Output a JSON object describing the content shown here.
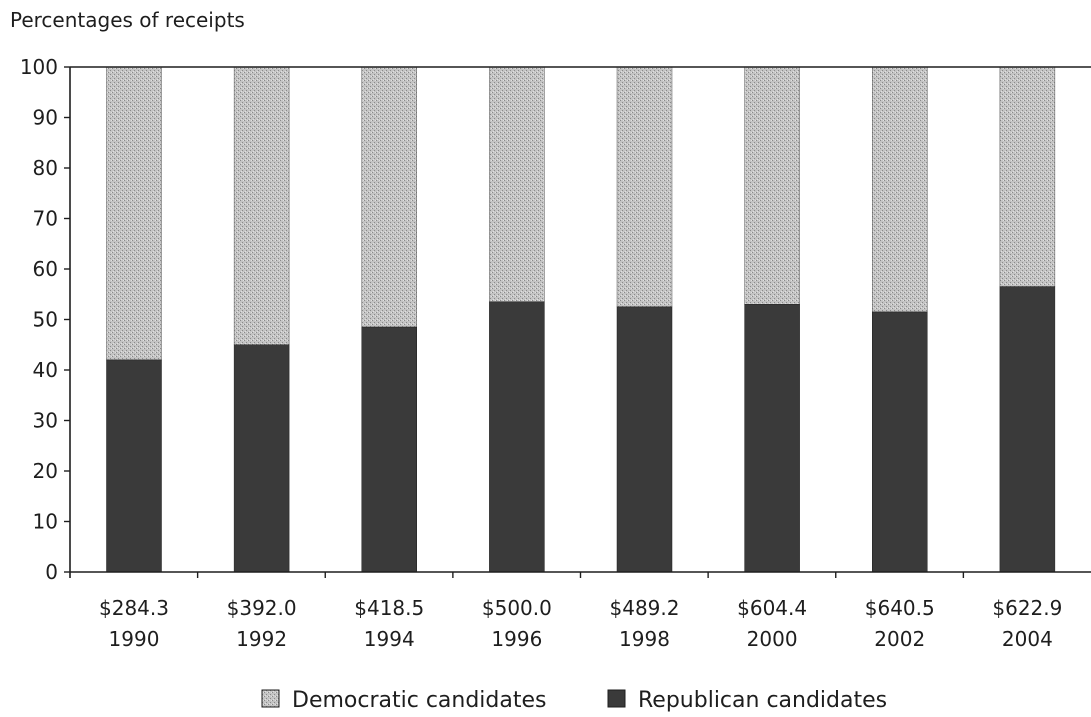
{
  "chart_data": {
    "type": "bar",
    "stacked": true,
    "title": "",
    "ylabel": "Percentages of receipts",
    "xlabel": "",
    "ylim": [
      0,
      100
    ],
    "yticks": [
      0,
      10,
      20,
      30,
      40,
      50,
      60,
      70,
      80,
      90,
      100
    ],
    "grid": false,
    "legend_position": "bottom",
    "categories": [
      {
        "amount": "$284.3",
        "year": "1990"
      },
      {
        "amount": "$392.0",
        "year": "1992"
      },
      {
        "amount": "$418.5",
        "year": "1994"
      },
      {
        "amount": "$500.0",
        "year": "1996"
      },
      {
        "amount": "$489.2",
        "year": "1998"
      },
      {
        "amount": "$604.4",
        "year": "2000"
      },
      {
        "amount": "$640.5",
        "year": "2002"
      },
      {
        "amount": "$622.9",
        "year": "2004"
      }
    ],
    "series": [
      {
        "name": "Republican candidates",
        "color": "#3a3a3a",
        "pattern": "solid",
        "values": [
          42,
          45,
          48.5,
          53.5,
          52.5,
          53,
          51.5,
          56.5
        ]
      },
      {
        "name": "Democratic candidates",
        "color": "#b8b8b8",
        "pattern": "stipple",
        "values": [
          58,
          55,
          51.5,
          46.5,
          47.5,
          47,
          48.5,
          43.5
        ]
      }
    ],
    "legend_order": [
      "Democratic candidates",
      "Republican candidates"
    ]
  }
}
